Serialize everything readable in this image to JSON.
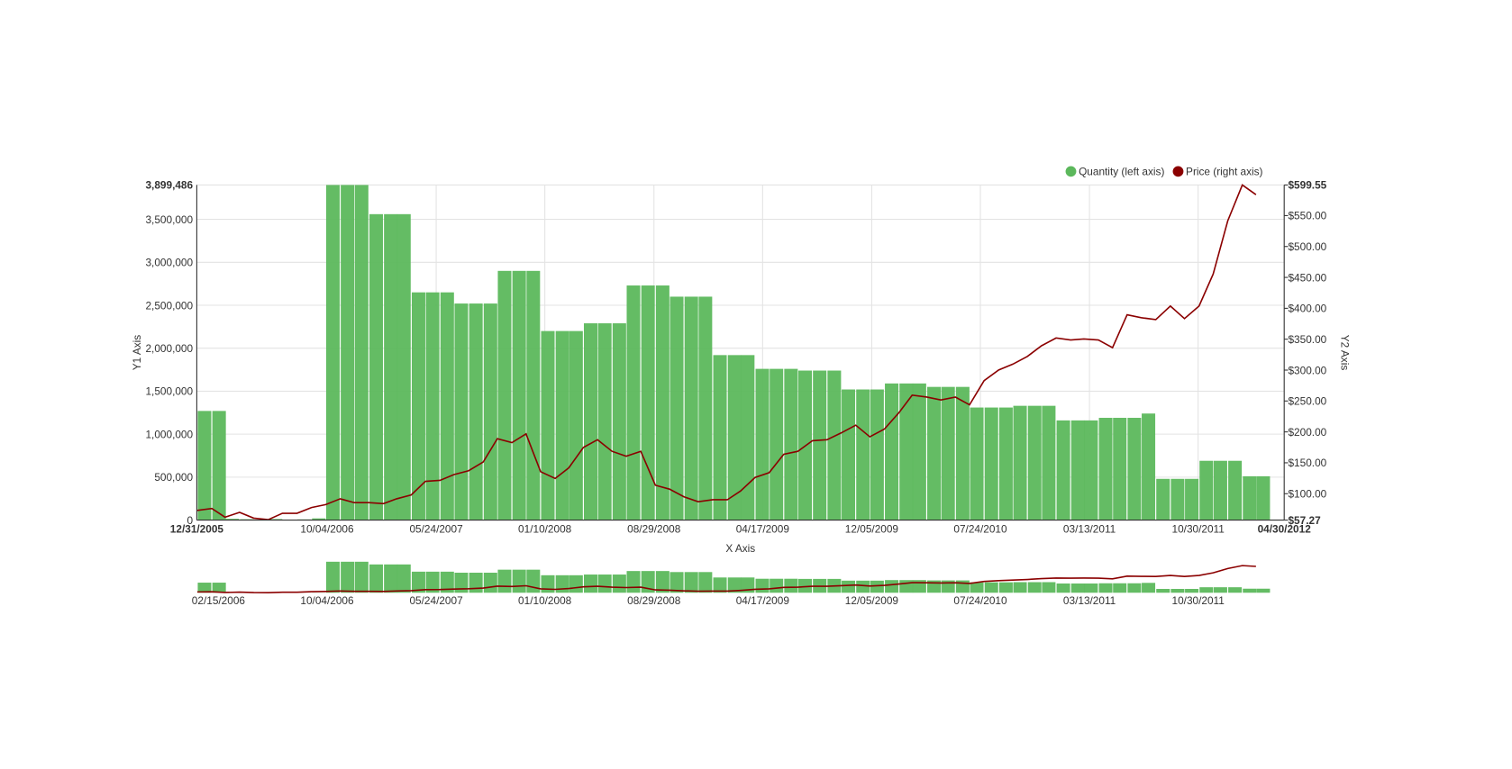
{
  "chart_data": {
    "type": "combo",
    "x_label": "X Axis",
    "y_label": "Y1 Axis",
    "y2_label": "Y2 Axis",
    "legend": "top-right",
    "grid": true,
    "xlim": [
      "12/31/2005",
      "04/30/2012"
    ],
    "xticks": [
      "12/31/2005",
      "10/04/2006",
      "05/24/2007",
      "01/10/2008",
      "08/29/2008",
      "04/17/2009",
      "12/05/2009",
      "07/24/2010",
      "03/13/2011",
      "10/30/2011",
      "04/30/2012"
    ],
    "navigator_xticks": [
      "02/15/2006",
      "10/04/2006",
      "05/24/2007",
      "01/10/2008",
      "08/29/2008",
      "04/17/2009",
      "12/05/2009",
      "07/24/2010",
      "03/13/2011",
      "10/30/2011"
    ],
    "ylim": [
      0,
      3899486
    ],
    "yticks": [
      0,
      {
        "value": 500000,
        "label": "500,000"
      },
      {
        "value": 1000000,
        "label": "1,000,000"
      },
      {
        "value": 1500000,
        "label": "1,500,000"
      },
      {
        "value": 2000000,
        "label": "2,000,000"
      },
      {
        "value": 2500000,
        "label": "2,500,000"
      },
      {
        "value": 3000000,
        "label": "3,000,000"
      },
      {
        "value": 3500000,
        "label": "3,500,000"
      },
      {
        "value": 3899486,
        "label": "3,899,486"
      }
    ],
    "y2lim": [
      57.27,
      599.55
    ],
    "y2ticks": [
      {
        "value": 57.27,
        "label": "$57.27"
      },
      {
        "value": 100,
        "label": "$100.00"
      },
      {
        "value": 150,
        "label": "$150.00"
      },
      {
        "value": 200,
        "label": "$200.00"
      },
      {
        "value": 250,
        "label": "$250.00"
      },
      {
        "value": 300,
        "label": "$300.00"
      },
      {
        "value": 350,
        "label": "$350.00"
      },
      {
        "value": 400,
        "label": "$400.00"
      },
      {
        "value": 450,
        "label": "$450.00"
      },
      {
        "value": 500,
        "label": "$500.00"
      },
      {
        "value": 550,
        "label": "$550.00"
      },
      {
        "value": 599.55,
        "label": "$599.55"
      }
    ],
    "x": [
      "01/01/2006",
      "02/01/2006",
      "03/01/2006",
      "04/01/2006",
      "05/01/2006",
      "06/01/2006",
      "07/01/2006",
      "08/01/2006",
      "09/01/2006",
      "10/01/2006",
      "11/01/2006",
      "12/01/2006",
      "01/01/2007",
      "02/01/2007",
      "03/01/2007",
      "04/01/2007",
      "05/01/2007",
      "06/01/2007",
      "07/01/2007",
      "08/01/2007",
      "09/01/2007",
      "10/01/2007",
      "11/01/2007",
      "12/01/2007",
      "01/01/2008",
      "02/01/2008",
      "03/01/2008",
      "04/01/2008",
      "05/01/2008",
      "06/01/2008",
      "07/01/2008",
      "08/01/2008",
      "09/01/2008",
      "10/01/2008",
      "11/01/2008",
      "12/01/2008",
      "01/01/2009",
      "02/01/2009",
      "03/01/2009",
      "04/01/2009",
      "05/01/2009",
      "06/01/2009",
      "07/01/2009",
      "08/01/2009",
      "09/01/2009",
      "10/01/2009",
      "11/01/2009",
      "12/01/2009",
      "01/01/2010",
      "02/01/2010",
      "03/01/2010",
      "04/01/2010",
      "05/01/2010",
      "06/01/2010",
      "07/01/2010",
      "08/01/2010",
      "09/01/2010",
      "10/01/2010",
      "11/01/2010",
      "12/01/2010",
      "01/01/2011",
      "02/01/2011",
      "03/01/2011",
      "04/01/2011",
      "05/01/2011",
      "06/01/2011",
      "07/01/2011",
      "08/01/2011",
      "09/01/2011",
      "10/01/2011",
      "11/01/2011",
      "12/01/2011",
      "01/01/2012",
      "02/01/2012",
      "03/01/2012"
    ],
    "series": [
      {
        "name": "Quantity (left axis)",
        "type": "bar",
        "color": "#5cb85c",
        "values": [
          1270000,
          1270000,
          15000,
          10000,
          5000,
          12000,
          3000,
          8000,
          20000,
          3899486,
          3899486,
          3899486,
          3560000,
          3560000,
          3560000,
          2650000,
          2650000,
          2650000,
          2520000,
          2520000,
          2520000,
          2900000,
          2900000,
          2900000,
          2200000,
          2200000,
          2200000,
          2290000,
          2290000,
          2290000,
          2730000,
          2730000,
          2730000,
          2600000,
          2600000,
          2600000,
          1920000,
          1920000,
          1920000,
          1760000,
          1760000,
          1760000,
          1740000,
          1740000,
          1740000,
          1520000,
          1520000,
          1520000,
          1590000,
          1590000,
          1590000,
          1550000,
          1550000,
          1550000,
          1310000,
          1310000,
          1310000,
          1330000,
          1330000,
          1330000,
          1160000,
          1160000,
          1160000,
          1190000,
          1190000,
          1190000,
          1240000,
          480000,
          480000,
          480000,
          690000,
          690000,
          690000,
          510000,
          510000
        ]
      },
      {
        "name": "Price (right axis)",
        "type": "line",
        "axis": "y2",
        "color": "#8b0000",
        "values": [
          72.94,
          76.08,
          61.97,
          69.81,
          60.4,
          58,
          68.24,
          68.24,
          77.65,
          82.35,
          91.75,
          85.48,
          85.48,
          83.91,
          91.75,
          98.02,
          119.96,
          121.53,
          130.93,
          137.2,
          151.31,
          188.92,
          182.65,
          196.76,
          135.64,
          124.66,
          141.9,
          174.82,
          187.36,
          168.55,
          160.71,
          168.55,
          113.69,
          107.42,
          94.89,
          87.05,
          90.18,
          90.18,
          104.29,
          126.23,
          134.07,
          163.85,
          168.55,
          185.79,
          187.36,
          198.33,
          210.87,
          192.06,
          204.6,
          231.24,
          259.45,
          256.32,
          251.62,
          256.32,
          243.77,
          282.96,
          300.19,
          309.6,
          322.14,
          339.38,
          351.92,
          348.78,
          350.35,
          348.78,
          336.24,
          389.53,
          384.83,
          381.69,
          403.64,
          383.26,
          403.64,
          455.36,
          541.56,
          599.55,
          583.88
        ]
      }
    ]
  }
}
